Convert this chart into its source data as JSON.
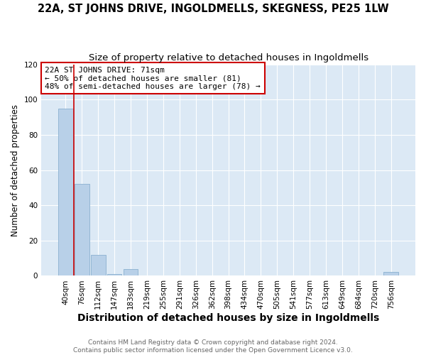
{
  "title": "22A, ST JOHNS DRIVE, INGOLDMELLS, SKEGNESS, PE25 1LW",
  "subtitle": "Size of property relative to detached houses in Ingoldmells",
  "xlabel": "Distribution of detached houses by size in Ingoldmells",
  "ylabel": "Number of detached properties",
  "bar_labels": [
    "40sqm",
    "76sqm",
    "112sqm",
    "147sqm",
    "183sqm",
    "219sqm",
    "255sqm",
    "291sqm",
    "326sqm",
    "362sqm",
    "398sqm",
    "434sqm",
    "470sqm",
    "505sqm",
    "541sqm",
    "577sqm",
    "613sqm",
    "649sqm",
    "684sqm",
    "720sqm",
    "756sqm"
  ],
  "bar_values": [
    95,
    52,
    12,
    1,
    4,
    0,
    0,
    0,
    0,
    0,
    0,
    0,
    0,
    0,
    0,
    0,
    0,
    0,
    0,
    0,
    2
  ],
  "bar_color": "#b8d0e8",
  "bar_edge_color": "#8ab0d0",
  "vline_x_index": 1,
  "vline_color": "#cc0000",
  "annotation_text": "22A ST JOHNS DRIVE: 71sqm\n← 50% of detached houses are smaller (81)\n48% of semi-detached houses are larger (78) →",
  "annotation_box_color": "#ffffff",
  "annotation_box_edge": "#cc0000",
  "ylim": [
    0,
    120
  ],
  "yticks": [
    0,
    20,
    40,
    60,
    80,
    100,
    120
  ],
  "fig_bg_color": "#ffffff",
  "plot_bg_color": "#dce9f5",
  "footer_line1": "Contains HM Land Registry data © Crown copyright and database right 2024.",
  "footer_line2": "Contains public sector information licensed under the Open Government Licence v3.0.",
  "title_fontsize": 10.5,
  "subtitle_fontsize": 9.5,
  "xlabel_fontsize": 10,
  "ylabel_fontsize": 8.5,
  "tick_fontsize": 7.5,
  "annotation_fontsize": 8,
  "footer_fontsize": 6.5
}
